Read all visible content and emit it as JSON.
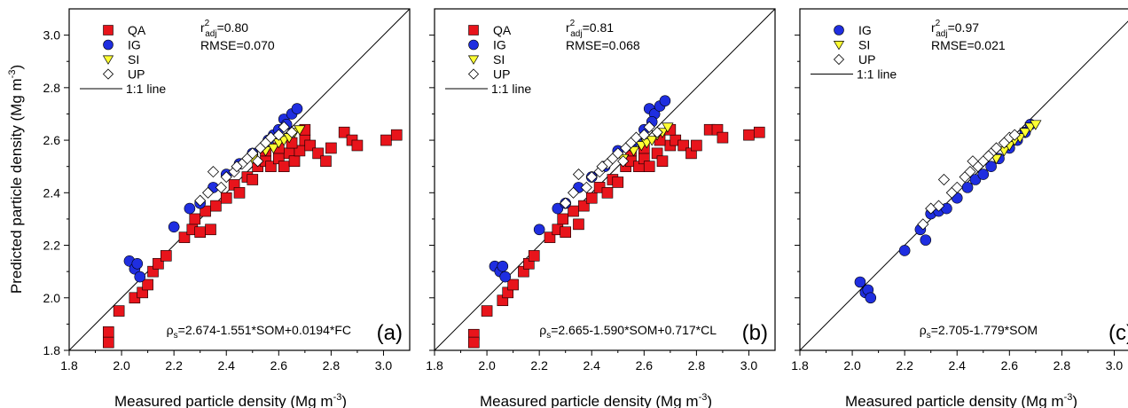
{
  "figure": {
    "ylabel_main": "Predicted particle density (Mg m",
    "ylabel_sup": "-3",
    "ylabel_close": ")",
    "xlabel_main": "Measured particle density (Mg m",
    "xlabel_sup": "-3",
    "xlabel_close": ")"
  },
  "colors": {
    "QA": "#e8141b",
    "IG": "#1f2ee0",
    "SI": "#ffff33",
    "UP": "#ffffff",
    "line": "#000000"
  },
  "chart_data": [
    {
      "type": "scatter",
      "panel_label": "(a)",
      "stats": {
        "r2_prefix": "r",
        "r2_sup": "2",
        "r2_sub": "adj",
        "r2_value": "=0.80",
        "rmse": "RMSE=0.070"
      },
      "equation": {
        "rho": "ρ",
        "sub": "s",
        "rhs": "=2.674-1.551*SOM+0.0194*FC"
      },
      "legend": [
        "QA",
        "IG",
        "SI",
        "UP",
        "1:1 line"
      ],
      "legend_placement": "top-left",
      "xlim": [
        1.8,
        3.1
      ],
      "ylim": [
        1.8,
        3.1
      ],
      "x_ticks": [
        "1.8",
        "2.0",
        "2.2",
        "2.4",
        "2.6",
        "2.8",
        "3.0"
      ],
      "y_ticks": [
        "1.8",
        "2.0",
        "2.2",
        "2.4",
        "2.6",
        "2.8",
        "3.0"
      ],
      "series": [
        {
          "name": "QA",
          "marker": "square",
          "points": [
            [
              1.95,
              1.87
            ],
            [
              1.95,
              1.83
            ],
            [
              1.99,
              1.95
            ],
            [
              2.05,
              2.0
            ],
            [
              2.08,
              2.02
            ],
            [
              2.1,
              2.05
            ],
            [
              2.12,
              2.1
            ],
            [
              2.14,
              2.13
            ],
            [
              2.17,
              2.16
            ],
            [
              2.24,
              2.23
            ],
            [
              2.27,
              2.26
            ],
            [
              2.3,
              2.25
            ],
            [
              2.28,
              2.3
            ],
            [
              2.32,
              2.33
            ],
            [
              2.34,
              2.26
            ],
            [
              2.36,
              2.35
            ],
            [
              2.4,
              2.38
            ],
            [
              2.43,
              2.43
            ],
            [
              2.45,
              2.4
            ],
            [
              2.48,
              2.46
            ],
            [
              2.5,
              2.45
            ],
            [
              2.52,
              2.5
            ],
            [
              2.55,
              2.52
            ],
            [
              2.57,
              2.5
            ],
            [
              2.6,
              2.53
            ],
            [
              2.62,
              2.5
            ],
            [
              2.64,
              2.55
            ],
            [
              2.66,
              2.52
            ],
            [
              2.68,
              2.56
            ],
            [
              2.7,
              2.6
            ],
            [
              2.72,
              2.58
            ],
            [
              2.75,
              2.55
            ],
            [
              2.78,
              2.52
            ],
            [
              2.8,
              2.57
            ],
            [
              2.85,
              2.63
            ],
            [
              2.88,
              2.6
            ],
            [
              2.9,
              2.58
            ],
            [
              3.01,
              2.6
            ],
            [
              3.05,
              2.62
            ],
            [
              2.6,
              2.57
            ],
            [
              2.55,
              2.56
            ],
            [
              2.65,
              2.59
            ],
            [
              2.7,
              2.64
            ]
          ]
        },
        {
          "name": "IG",
          "marker": "circle",
          "points": [
            [
              2.03,
              2.14
            ],
            [
              2.05,
              2.11
            ],
            [
              2.06,
              2.13
            ],
            [
              2.07,
              2.08
            ],
            [
              2.2,
              2.27
            ],
            [
              2.26,
              2.34
            ],
            [
              2.3,
              2.36
            ],
            [
              2.35,
              2.42
            ],
            [
              2.4,
              2.47
            ],
            [
              2.45,
              2.51
            ],
            [
              2.5,
              2.55
            ],
            [
              2.55,
              2.58
            ],
            [
              2.58,
              2.62
            ],
            [
              2.6,
              2.64
            ],
            [
              2.62,
              2.68
            ],
            [
              2.65,
              2.7
            ],
            [
              2.67,
              2.72
            ],
            [
              2.63,
              2.66
            ],
            [
              2.56,
              2.6
            ]
          ]
        },
        {
          "name": "SI",
          "marker": "triangle",
          "points": [
            [
              2.5,
              2.53
            ],
            [
              2.55,
              2.56
            ],
            [
              2.58,
              2.57
            ],
            [
              2.6,
              2.59
            ],
            [
              2.62,
              2.6
            ],
            [
              2.64,
              2.61
            ],
            [
              2.66,
              2.63
            ],
            [
              2.68,
              2.64
            ]
          ]
        },
        {
          "name": "UP",
          "marker": "diamond",
          "points": [
            [
              2.3,
              2.37
            ],
            [
              2.33,
              2.4
            ],
            [
              2.35,
              2.48
            ],
            [
              2.38,
              2.42
            ],
            [
              2.4,
              2.46
            ],
            [
              2.43,
              2.48
            ],
            [
              2.46,
              2.51
            ],
            [
              2.48,
              2.53
            ],
            [
              2.5,
              2.55
            ],
            [
              2.53,
              2.57
            ],
            [
              2.55,
              2.59
            ],
            [
              2.57,
              2.61
            ],
            [
              2.6,
              2.62
            ],
            [
              2.62,
              2.65
            ],
            [
              2.65,
              2.63
            ],
            [
              2.52,
              2.52
            ],
            [
              2.44,
              2.5
            ]
          ]
        }
      ]
    },
    {
      "type": "scatter",
      "panel_label": "(b)",
      "stats": {
        "r2_prefix": "r",
        "r2_sup": "2",
        "r2_sub": "adj",
        "r2_value": "=0.81",
        "rmse": "RMSE=0.068"
      },
      "equation": {
        "rho": "ρ",
        "sub": "s",
        "rhs": "=2.665-1.590*SOM+0.717*CL"
      },
      "legend": [
        "QA",
        "IG",
        "SI",
        "UP",
        "1:1 line"
      ],
      "legend_placement": "top-left",
      "xlim": [
        1.8,
        3.1
      ],
      "ylim": [
        1.8,
        3.1
      ],
      "x_ticks": [
        "1.8",
        "2.0",
        "2.2",
        "2.4",
        "2.6",
        "2.8",
        "3.0"
      ],
      "y_ticks": [
        "1.8",
        "2.0",
        "2.2",
        "2.4",
        "2.6",
        "2.8",
        "3.0"
      ],
      "series": [
        {
          "name": "QA",
          "marker": "square",
          "points": [
            [
              1.95,
              1.86
            ],
            [
              1.95,
              1.83
            ],
            [
              2.0,
              1.95
            ],
            [
              2.06,
              1.99
            ],
            [
              2.08,
              2.02
            ],
            [
              2.1,
              2.05
            ],
            [
              2.14,
              2.1
            ],
            [
              2.16,
              2.13
            ],
            [
              2.18,
              2.16
            ],
            [
              2.24,
              2.23
            ],
            [
              2.27,
              2.26
            ],
            [
              2.3,
              2.25
            ],
            [
              2.29,
              2.3
            ],
            [
              2.33,
              2.33
            ],
            [
              2.35,
              2.28
            ],
            [
              2.37,
              2.35
            ],
            [
              2.4,
              2.38
            ],
            [
              2.43,
              2.42
            ],
            [
              2.46,
              2.4
            ],
            [
              2.48,
              2.45
            ],
            [
              2.5,
              2.44
            ],
            [
              2.53,
              2.5
            ],
            [
              2.55,
              2.52
            ],
            [
              2.58,
              2.5
            ],
            [
              2.6,
              2.53
            ],
            [
              2.62,
              2.5
            ],
            [
              2.65,
              2.55
            ],
            [
              2.67,
              2.52
            ],
            [
              2.7,
              2.58
            ],
            [
              2.72,
              2.6
            ],
            [
              2.75,
              2.58
            ],
            [
              2.78,
              2.55
            ],
            [
              2.8,
              2.58
            ],
            [
              2.85,
              2.64
            ],
            [
              2.88,
              2.64
            ],
            [
              2.9,
              2.61
            ],
            [
              3.0,
              2.62
            ],
            [
              3.04,
              2.63
            ],
            [
              2.6,
              2.57
            ],
            [
              2.55,
              2.56
            ],
            [
              2.66,
              2.6
            ],
            [
              2.7,
              2.64
            ]
          ]
        },
        {
          "name": "IG",
          "marker": "circle",
          "points": [
            [
              2.03,
              2.12
            ],
            [
              2.05,
              2.1
            ],
            [
              2.06,
              2.12
            ],
            [
              2.07,
              2.08
            ],
            [
              2.2,
              2.26
            ],
            [
              2.27,
              2.34
            ],
            [
              2.3,
              2.36
            ],
            [
              2.35,
              2.42
            ],
            [
              2.4,
              2.46
            ],
            [
              2.45,
              2.5
            ],
            [
              2.5,
              2.56
            ],
            [
              2.55,
              2.58
            ],
            [
              2.6,
              2.64
            ],
            [
              2.62,
              2.72
            ],
            [
              2.64,
              2.7
            ],
            [
              2.66,
              2.73
            ],
            [
              2.68,
              2.75
            ],
            [
              2.63,
              2.67
            ],
            [
              2.57,
              2.6
            ]
          ]
        },
        {
          "name": "SI",
          "marker": "triangle",
          "points": [
            [
              2.52,
              2.53
            ],
            [
              2.56,
              2.56
            ],
            [
              2.59,
              2.58
            ],
            [
              2.61,
              2.59
            ],
            [
              2.63,
              2.6
            ],
            [
              2.65,
              2.62
            ],
            [
              2.67,
              2.63
            ],
            [
              2.69,
              2.65
            ]
          ]
        },
        {
          "name": "UP",
          "marker": "diamond",
          "points": [
            [
              2.3,
              2.36
            ],
            [
              2.33,
              2.4
            ],
            [
              2.35,
              2.47
            ],
            [
              2.38,
              2.42
            ],
            [
              2.4,
              2.46
            ],
            [
              2.43,
              2.48
            ],
            [
              2.46,
              2.51
            ],
            [
              2.48,
              2.53
            ],
            [
              2.5,
              2.55
            ],
            [
              2.53,
              2.57
            ],
            [
              2.55,
              2.59
            ],
            [
              2.57,
              2.61
            ],
            [
              2.6,
              2.62
            ],
            [
              2.62,
              2.65
            ],
            [
              2.65,
              2.63
            ],
            [
              2.52,
              2.52
            ],
            [
              2.44,
              2.5
            ]
          ]
        }
      ]
    },
    {
      "type": "scatter",
      "panel_label": "(c)",
      "stats": {
        "r2_prefix": "r",
        "r2_sup": "2",
        "r2_sub": "adj",
        "r2_value": "=0.97",
        "rmse": "RMSE=0.021"
      },
      "equation": {
        "rho": "ρ",
        "sub": "s",
        "rhs": "=2.705-1.779*SOM"
      },
      "legend": [
        "IG",
        "SI",
        "UP",
        "1:1 line"
      ],
      "legend_placement": "top-left",
      "xlim": [
        1.8,
        3.1
      ],
      "ylim": [
        1.8,
        3.1
      ],
      "x_ticks": [
        "1.8",
        "2.0",
        "2.2",
        "2.4",
        "2.6",
        "2.8",
        "3.0"
      ],
      "y_ticks": [
        "1.8",
        "2.0",
        "2.2",
        "2.4",
        "2.6",
        "2.8",
        "3.0"
      ],
      "series": [
        {
          "name": "IG",
          "marker": "circle",
          "points": [
            [
              2.03,
              2.06
            ],
            [
              2.05,
              2.02
            ],
            [
              2.06,
              2.03
            ],
            [
              2.07,
              2.0
            ],
            [
              2.2,
              2.18
            ],
            [
              2.26,
              2.26
            ],
            [
              2.28,
              2.22
            ],
            [
              2.3,
              2.32
            ],
            [
              2.33,
              2.33
            ],
            [
              2.36,
              2.34
            ],
            [
              2.4,
              2.38
            ],
            [
              2.44,
              2.42
            ],
            [
              2.47,
              2.45
            ],
            [
              2.5,
              2.47
            ],
            [
              2.53,
              2.5
            ],
            [
              2.56,
              2.53
            ],
            [
              2.6,
              2.57
            ],
            [
              2.63,
              2.6
            ],
            [
              2.66,
              2.63
            ],
            [
              2.68,
              2.66
            ]
          ]
        },
        {
          "name": "SI",
          "marker": "triangle",
          "points": [
            [
              2.55,
              2.53
            ],
            [
              2.58,
              2.56
            ],
            [
              2.6,
              2.58
            ],
            [
              2.62,
              2.6
            ],
            [
              2.64,
              2.61
            ],
            [
              2.66,
              2.63
            ],
            [
              2.68,
              2.65
            ],
            [
              2.7,
              2.66
            ]
          ]
        },
        {
          "name": "UP",
          "marker": "diamond",
          "points": [
            [
              2.27,
              2.28
            ],
            [
              2.3,
              2.34
            ],
            [
              2.33,
              2.35
            ],
            [
              2.35,
              2.45
            ],
            [
              2.38,
              2.4
            ],
            [
              2.4,
              2.42
            ],
            [
              2.43,
              2.46
            ],
            [
              2.45,
              2.48
            ],
            [
              2.48,
              2.5
            ],
            [
              2.5,
              2.52
            ],
            [
              2.53,
              2.55
            ],
            [
              2.55,
              2.57
            ],
            [
              2.58,
              2.59
            ],
            [
              2.6,
              2.61
            ],
            [
              2.62,
              2.62
            ],
            [
              2.46,
              2.52
            ],
            [
              2.52,
              2.54
            ]
          ]
        }
      ]
    }
  ]
}
